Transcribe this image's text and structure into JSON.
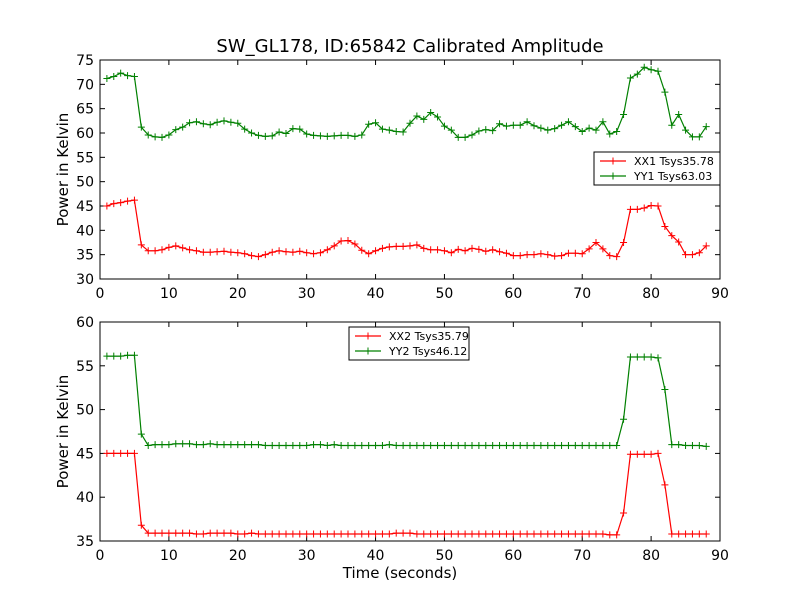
{
  "title": "SW_GL178, ID:65842 Calibrated Amplitude",
  "colors": {
    "red": "#ff0000",
    "green": "#008000"
  },
  "chart_data": [
    {
      "type": "line",
      "xlabel": "",
      "ylabel": "Power in Kelvin",
      "xlim": [
        0,
        90
      ],
      "ylim": [
        30,
        75
      ],
      "xticks": [
        "0",
        "10",
        "20",
        "30",
        "40",
        "50",
        "60",
        "70",
        "80",
        "90"
      ],
      "yticks": [
        "30",
        "35",
        "40",
        "45",
        "50",
        "55",
        "60",
        "65",
        "70",
        "75"
      ],
      "legend_position": "center-right",
      "x": [
        1,
        2,
        3,
        4,
        5,
        6,
        7,
        8,
        9,
        10,
        11,
        12,
        13,
        14,
        15,
        16,
        17,
        18,
        19,
        20,
        21,
        22,
        23,
        24,
        25,
        26,
        27,
        28,
        29,
        30,
        31,
        32,
        33,
        34,
        35,
        36,
        37,
        38,
        39,
        40,
        41,
        42,
        43,
        44,
        45,
        46,
        47,
        48,
        49,
        50,
        51,
        52,
        53,
        54,
        55,
        56,
        57,
        58,
        59,
        60,
        61,
        62,
        63,
        64,
        65,
        66,
        67,
        68,
        69,
        70,
        71,
        72,
        73,
        74,
        75,
        76,
        77,
        78,
        79,
        80,
        81,
        82,
        83,
        84,
        85,
        86,
        87,
        88
      ],
      "series": [
        {
          "name": "XX1 Tsys35.78",
          "color": "#ff0000",
          "values": [
            45.0,
            45.5,
            45.7,
            46.0,
            46.2,
            37.0,
            35.8,
            35.8,
            36.0,
            36.5,
            36.8,
            36.4,
            36.0,
            35.8,
            35.5,
            35.5,
            35.6,
            35.7,
            35.5,
            35.4,
            35.2,
            34.8,
            34.6,
            35.0,
            35.5,
            35.8,
            35.6,
            35.5,
            35.7,
            35.4,
            35.2,
            35.4,
            36.0,
            36.8,
            37.8,
            37.9,
            37.2,
            35.9,
            35.2,
            35.8,
            36.3,
            36.6,
            36.7,
            36.7,
            36.8,
            37.0,
            36.3,
            36.0,
            36.0,
            35.8,
            35.4,
            36.1,
            35.8,
            36.3,
            36.1,
            35.7,
            36.0,
            35.6,
            35.3,
            34.8,
            34.8,
            35.0,
            35.0,
            35.2,
            35.0,
            34.7,
            34.8,
            35.3,
            35.3,
            35.2,
            36.2,
            37.5,
            36.2,
            34.8,
            34.6,
            37.5,
            44.3,
            44.3,
            44.6,
            45.1,
            45.0,
            40.8,
            38.9,
            37.6,
            35.0,
            35.0,
            35.4,
            36.8
          ]
        },
        {
          "name": "YY1 Tsys63.03",
          "color": "#008000",
          "values": [
            71.2,
            71.6,
            72.3,
            71.8,
            71.6,
            61.2,
            59.6,
            59.2,
            59.1,
            59.6,
            60.7,
            61.2,
            62.1,
            62.3,
            61.9,
            61.7,
            62.2,
            62.5,
            62.2,
            62.0,
            60.8,
            60.0,
            59.5,
            59.3,
            59.4,
            60.2,
            59.9,
            60.9,
            60.8,
            59.8,
            59.5,
            59.4,
            59.3,
            59.4,
            59.5,
            59.5,
            59.3,
            59.6,
            61.8,
            62.1,
            60.8,
            60.6,
            60.3,
            60.2,
            62.0,
            63.5,
            62.8,
            64.2,
            63.3,
            61.4,
            60.6,
            59.1,
            59.1,
            59.6,
            60.4,
            60.7,
            60.5,
            61.9,
            61.4,
            61.6,
            61.6,
            62.3,
            61.5,
            61.0,
            60.6,
            60.9,
            61.6,
            62.3,
            61.3,
            60.3,
            61.0,
            60.6,
            62.3,
            59.8,
            60.3,
            63.8,
            71.3,
            72.1,
            73.5,
            73.0,
            72.7,
            68.4,
            61.6,
            63.8,
            60.6,
            59.2,
            59.2,
            61.3
          ]
        }
      ]
    },
    {
      "type": "line",
      "xlabel": "Time (seconds)",
      "ylabel": "Power in Kelvin",
      "xlim": [
        0,
        90
      ],
      "ylim": [
        35,
        60
      ],
      "xticks": [
        "0",
        "10",
        "20",
        "30",
        "40",
        "50",
        "60",
        "70",
        "80",
        "90"
      ],
      "yticks": [
        "35",
        "40",
        "45",
        "50",
        "55",
        "60"
      ],
      "legend_position": "top-center",
      "x": [
        1,
        2,
        3,
        4,
        5,
        6,
        7,
        8,
        9,
        10,
        11,
        12,
        13,
        14,
        15,
        16,
        17,
        18,
        19,
        20,
        21,
        22,
        23,
        24,
        25,
        26,
        27,
        28,
        29,
        30,
        31,
        32,
        33,
        34,
        35,
        36,
        37,
        38,
        39,
        40,
        41,
        42,
        43,
        44,
        45,
        46,
        47,
        48,
        49,
        50,
        51,
        52,
        53,
        54,
        55,
        56,
        57,
        58,
        59,
        60,
        61,
        62,
        63,
        64,
        65,
        66,
        67,
        68,
        69,
        70,
        71,
        72,
        73,
        74,
        75,
        76,
        77,
        78,
        79,
        80,
        81,
        82,
        83,
        84,
        85,
        86,
        87,
        88
      ],
      "series": [
        {
          "name": "XX2 Tsys35.79",
          "color": "#ff0000",
          "values": [
            45.0,
            45.0,
            45.0,
            45.0,
            45.0,
            36.8,
            35.9,
            35.9,
            35.9,
            35.9,
            35.9,
            35.9,
            35.9,
            35.8,
            35.8,
            35.9,
            35.9,
            35.9,
            35.9,
            35.8,
            35.8,
            35.9,
            35.8,
            35.8,
            35.8,
            35.8,
            35.8,
            35.8,
            35.8,
            35.8,
            35.8,
            35.8,
            35.8,
            35.8,
            35.8,
            35.8,
            35.8,
            35.8,
            35.8,
            35.8,
            35.8,
            35.8,
            35.9,
            35.9,
            35.9,
            35.8,
            35.8,
            35.8,
            35.8,
            35.8,
            35.8,
            35.8,
            35.8,
            35.8,
            35.8,
            35.8,
            35.8,
            35.8,
            35.8,
            35.8,
            35.8,
            35.8,
            35.8,
            35.8,
            35.8,
            35.8,
            35.8,
            35.8,
            35.8,
            35.8,
            35.8,
            35.8,
            35.8,
            35.7,
            35.7,
            38.2,
            44.9,
            44.9,
            44.9,
            44.9,
            45.0,
            41.4,
            35.8,
            35.8,
            35.8,
            35.8,
            35.8,
            35.8
          ]
        },
        {
          "name": "YY2 Tsys46.12",
          "color": "#008000",
          "values": [
            56.1,
            56.1,
            56.1,
            56.2,
            56.2,
            47.2,
            45.9,
            46.0,
            46.0,
            46.0,
            46.1,
            46.1,
            46.1,
            46.0,
            46.0,
            46.1,
            46.0,
            46.0,
            46.0,
            46.0,
            46.0,
            46.0,
            46.0,
            45.9,
            45.9,
            45.9,
            45.9,
            45.9,
            45.9,
            45.9,
            46.0,
            46.0,
            45.9,
            46.0,
            45.9,
            45.9,
            45.9,
            45.9,
            45.9,
            45.9,
            45.9,
            46.0,
            45.9,
            45.9,
            45.9,
            45.9,
            45.9,
            45.9,
            45.9,
            45.9,
            45.9,
            45.9,
            45.9,
            45.9,
            45.9,
            45.9,
            45.9,
            45.9,
            45.9,
            45.9,
            45.9,
            45.9,
            45.9,
            45.9,
            45.9,
            45.9,
            45.9,
            45.9,
            45.9,
            45.9,
            45.9,
            45.9,
            45.9,
            45.9,
            45.9,
            48.9,
            56.0,
            56.0,
            56.0,
            56.0,
            55.9,
            52.3,
            46.0,
            46.0,
            45.9,
            45.9,
            45.9,
            45.8
          ]
        }
      ]
    }
  ]
}
